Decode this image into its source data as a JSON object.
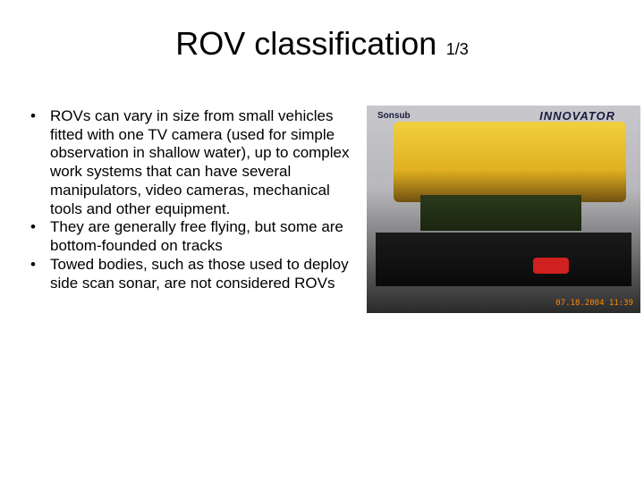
{
  "title": "ROV classification",
  "page_counter": "1/3",
  "bullets": [
    "ROVs can vary in size from small vehicles fitted with one TV camera (used for simple observation in shallow water), up to complex work systems that can have several manipulators, video cameras, mechanical tools and other equipment.",
    "They are generally free flying, but some are bottom-founded on tracks",
    "Towed bodies, such as those used to deploy side scan sonar, are not considered ROVs"
  ],
  "image": {
    "logo_left": "Sonsub",
    "logo_right": "INNOVATOR",
    "timestamp": "07.18.2004 11:39",
    "rov_color": "#e8c030",
    "platform_color": "#1a1a1a",
    "stand_color": "#d0a030",
    "red_object_color": "#d02020"
  },
  "styling": {
    "background_color": "#ffffff",
    "text_color": "#000000",
    "title_fontsize": 36,
    "counter_fontsize": 18,
    "body_fontsize": 17,
    "font_family": "Arial"
  }
}
